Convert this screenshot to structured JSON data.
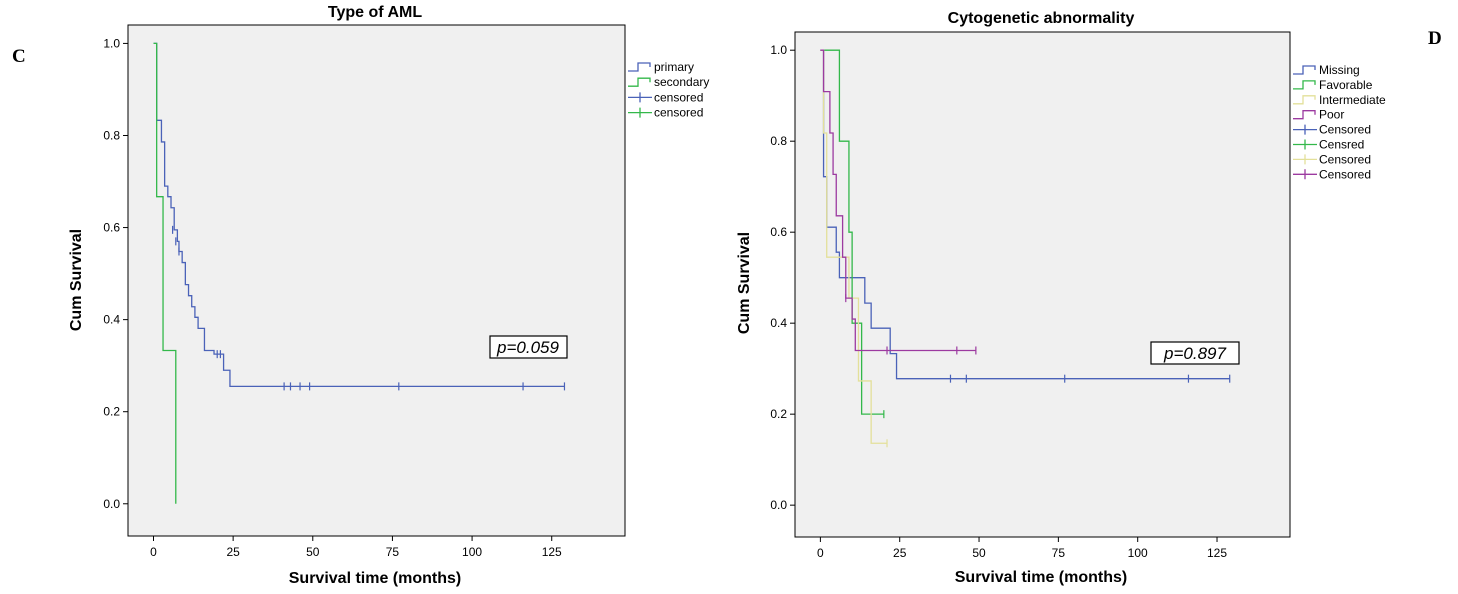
{
  "chart_data": [
    {
      "type": "line",
      "subtype": "kaplan-meier",
      "panel_label": "C",
      "title": "Type of AML",
      "xlabel": "Survival time (months)",
      "ylabel": "Cum Survival",
      "xlim": [
        -8,
        148
      ],
      "ylim": [
        -0.07,
        1.04
      ],
      "xticks": [
        0,
        25,
        50,
        75,
        100,
        125
      ],
      "yticks": [
        0.0,
        0.2,
        0.4,
        0.6,
        0.8,
        1.0
      ],
      "grid": false,
      "legend_position": "right",
      "annotation": "p=0.059",
      "series": [
        {
          "name": "primary",
          "color": "#4a62b8",
          "steps": [
            [
              0,
              1.0
            ],
            [
              1,
              1.0
            ],
            [
              1,
              0.833
            ],
            [
              2.5,
              0.833
            ],
            [
              2.5,
              0.786
            ],
            [
              3.5,
              0.786
            ],
            [
              3.5,
              0.69
            ],
            [
              4.5,
              0.69
            ],
            [
              4.5,
              0.667
            ],
            [
              5.5,
              0.667
            ],
            [
              5.5,
              0.643
            ],
            [
              6.5,
              0.643
            ],
            [
              6.5,
              0.595
            ],
            [
              7.5,
              0.595
            ],
            [
              7.5,
              0.57
            ],
            [
              8,
              0.57
            ],
            [
              8,
              0.548
            ],
            [
              9,
              0.548
            ],
            [
              9,
              0.524
            ],
            [
              10,
              0.524
            ],
            [
              10,
              0.476
            ],
            [
              11,
              0.476
            ],
            [
              11,
              0.452
            ],
            [
              12,
              0.452
            ],
            [
              12,
              0.428
            ],
            [
              13,
              0.428
            ],
            [
              13,
              0.405
            ],
            [
              14,
              0.405
            ],
            [
              14,
              0.381
            ],
            [
              16,
              0.381
            ],
            [
              16,
              0.333
            ],
            [
              19,
              0.333
            ],
            [
              19,
              0.325
            ],
            [
              22,
              0.325
            ],
            [
              22,
              0.29
            ],
            [
              24,
              0.29
            ],
            [
              24,
              0.255
            ],
            [
              129,
              0.255
            ]
          ],
          "censored": [
            [
              6,
              0.595
            ],
            [
              7,
              0.57
            ],
            [
              8,
              0.548
            ],
            [
              20,
              0.325
            ],
            [
              21,
              0.325
            ],
            [
              41,
              0.255
            ],
            [
              43,
              0.255
            ],
            [
              46,
              0.255
            ],
            [
              49,
              0.255
            ],
            [
              77,
              0.255
            ],
            [
              116,
              0.255
            ],
            [
              129,
              0.255
            ]
          ]
        },
        {
          "name": "secondary",
          "color": "#33b84a",
          "steps": [
            [
              0,
              1.0
            ],
            [
              1,
              1.0
            ],
            [
              1,
              0.667
            ],
            [
              3,
              0.667
            ],
            [
              3,
              0.333
            ],
            [
              7,
              0.333
            ],
            [
              7,
              0.0
            ]
          ],
          "censored": []
        }
      ],
      "legend_entries": [
        {
          "label": "primary",
          "kind": "step",
          "color": "#4a62b8"
        },
        {
          "label": "secondary",
          "kind": "step",
          "color": "#33b84a"
        },
        {
          "label": "censored",
          "kind": "plus",
          "color": "#4a62b8"
        },
        {
          "label": "censored",
          "kind": "plus",
          "color": "#33b84a"
        }
      ]
    },
    {
      "type": "line",
      "subtype": "kaplan-meier",
      "panel_label": "D",
      "title": "Cytogenetic abnormality",
      "xlabel": "Survival time (months)",
      "ylabel": "Cum Survival",
      "xlim": [
        -8,
        148
      ],
      "ylim": [
        -0.07,
        1.04
      ],
      "xticks": [
        0,
        25,
        50,
        75,
        100,
        125
      ],
      "yticks": [
        0.0,
        0.2,
        0.4,
        0.6,
        0.8,
        1.0
      ],
      "grid": false,
      "legend_position": "right",
      "annotation": "p=0.897",
      "series": [
        {
          "name": "Missing",
          "color": "#4a62b8",
          "steps": [
            [
              0,
              1.0
            ],
            [
              1,
              1.0
            ],
            [
              1,
              0.722
            ],
            [
              2,
              0.722
            ],
            [
              2,
              0.611
            ],
            [
              5,
              0.611
            ],
            [
              5,
              0.556
            ],
            [
              6,
              0.556
            ],
            [
              6,
              0.5
            ],
            [
              14,
              0.5
            ],
            [
              14,
              0.444
            ],
            [
              16,
              0.444
            ],
            [
              16,
              0.389
            ],
            [
              22,
              0.389
            ],
            [
              22,
              0.333
            ],
            [
              24,
              0.333
            ],
            [
              24,
              0.278
            ],
            [
              129,
              0.278
            ]
          ],
          "censored": [
            [
              41,
              0.278
            ],
            [
              46,
              0.278
            ],
            [
              77,
              0.278
            ],
            [
              116,
              0.278
            ],
            [
              129,
              0.278
            ]
          ]
        },
        {
          "name": "Favorable",
          "color": "#33b84a",
          "steps": [
            [
              0,
              1.0
            ],
            [
              2,
              1.0
            ],
            [
              2,
              1.0
            ],
            [
              6,
              1.0
            ],
            [
              6,
              0.8
            ],
            [
              9,
              0.8
            ],
            [
              9,
              0.6
            ],
            [
              10,
              0.6
            ],
            [
              10,
              0.4
            ],
            [
              13,
              0.4
            ],
            [
              13,
              0.2
            ],
            [
              20,
              0.2
            ]
          ],
          "censored": [
            [
              20,
              0.2
            ]
          ]
        },
        {
          "name": "Intermediate",
          "color": "#e3e09a",
          "steps": [
            [
              0,
              1.0
            ],
            [
              1,
              1.0
            ],
            [
              1,
              0.818
            ],
            [
              2,
              0.818
            ],
            [
              2,
              0.545
            ],
            [
              7,
              0.545
            ],
            [
              7,
              0.545
            ],
            [
              9,
              0.545
            ],
            [
              9,
              0.455
            ],
            [
              12,
              0.455
            ],
            [
              12,
              0.273
            ],
            [
              16,
              0.273
            ],
            [
              16,
              0.136
            ],
            [
              21,
              0.136
            ]
          ],
          "censored": [
            [
              21,
              0.136
            ]
          ]
        },
        {
          "name": "Poor",
          "color": "#9c3aa0",
          "steps": [
            [
              0,
              1.0
            ],
            [
              1,
              1.0
            ],
            [
              1,
              0.909
            ],
            [
              3,
              0.909
            ],
            [
              3,
              0.818
            ],
            [
              4,
              0.818
            ],
            [
              4,
              0.727
            ],
            [
              5,
              0.727
            ],
            [
              5,
              0.636
            ],
            [
              7,
              0.636
            ],
            [
              7,
              0.545
            ],
            [
              8,
              0.545
            ],
            [
              8,
              0.455
            ],
            [
              10,
              0.455
            ],
            [
              10,
              0.409
            ],
            [
              11,
              0.409
            ],
            [
              11,
              0.34
            ],
            [
              49,
              0.34
            ]
          ],
          "censored": [
            [
              8,
              0.455
            ],
            [
              21,
              0.34
            ],
            [
              43,
              0.34
            ],
            [
              49,
              0.34
            ]
          ]
        }
      ],
      "legend_entries": [
        {
          "label": "Missing",
          "kind": "step",
          "color": "#4a62b8"
        },
        {
          "label": "Favorable",
          "kind": "step",
          "color": "#33b84a"
        },
        {
          "label": "Intermediate",
          "kind": "step",
          "color": "#e3e09a"
        },
        {
          "label": "Poor",
          "kind": "step",
          "color": "#9c3aa0"
        },
        {
          "label": "Censored",
          "kind": "plus",
          "color": "#4a62b8"
        },
        {
          "label": "Censred",
          "kind": "plus",
          "color": "#33b84a"
        },
        {
          "label": "Censored",
          "kind": "plus",
          "color": "#e3e09a"
        },
        {
          "label": "Censored",
          "kind": "plus",
          "color": "#9c3aa0"
        }
      ]
    }
  ]
}
